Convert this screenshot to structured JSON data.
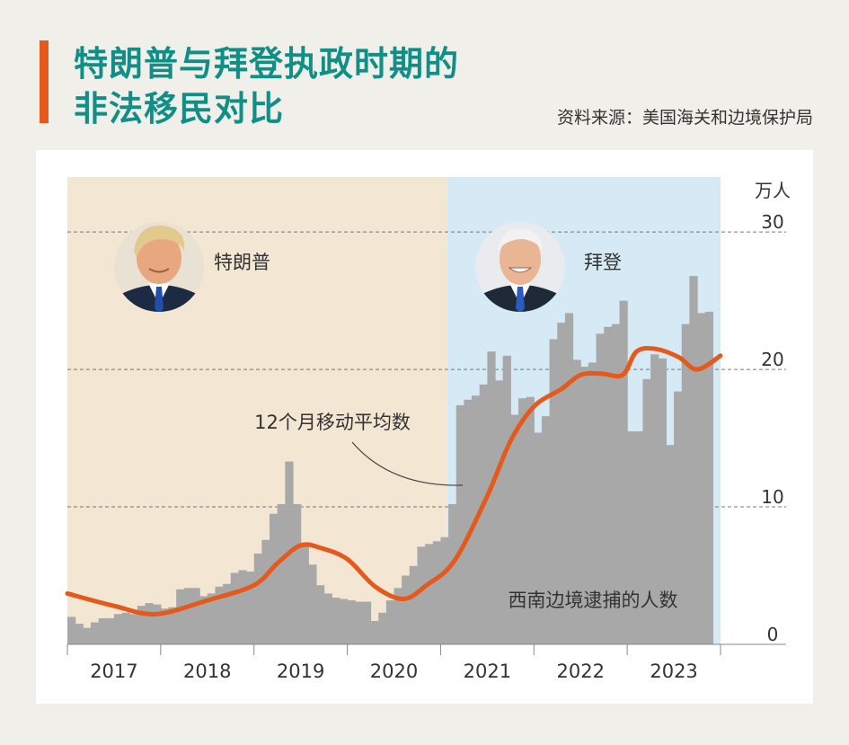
{
  "title_lines": [
    "特朗普与拜登执政时期的",
    "非法移民对比"
  ],
  "source": "资料来源：美国海关和边境保护局",
  "colors": {
    "accent": "#e35a1c",
    "title": "#0f8f86",
    "trump_bg": "#f3e6d3",
    "biden_bg": "#d6eaf5",
    "bars": "#a8a8a8",
    "moving_average": "#e35a1c"
  },
  "chart_data": {
    "type": "bar",
    "unit": "万人",
    "ylim": [
      0,
      34
    ],
    "yticks": [
      0,
      10,
      20,
      30
    ],
    "x_start": 2017,
    "x_end": 2024,
    "year_labels": [
      "2017",
      "2018",
      "2019",
      "2020",
      "2021",
      "2022",
      "2023"
    ],
    "periods": [
      {
        "name": "特朗普",
        "start": 2017.0,
        "end": 2021.07
      },
      {
        "name": "拜登",
        "start": 2021.07,
        "end": 2024.0
      }
    ],
    "series": [
      {
        "name": "西南边境逮捕的人数",
        "type": "bar",
        "start": 2017.0,
        "step_months": 1,
        "values": [
          2.0,
          1.5,
          1.2,
          1.6,
          1.9,
          1.9,
          2.2,
          2.3,
          2.2,
          2.8,
          3.0,
          2.9,
          2.6,
          2.7,
          4.0,
          4.1,
          4.1,
          3.5,
          3.7,
          4.2,
          4.4,
          5.2,
          5.4,
          5.3,
          6.6,
          7.6,
          9.5,
          10.2,
          13.3,
          10.2,
          7.2,
          5.8,
          4.3,
          3.7,
          3.4,
          3.3,
          3.2,
          3.1,
          3.1,
          1.7,
          2.3,
          3.2,
          4.1,
          5.0,
          5.7,
          7.1,
          7.3,
          7.5,
          7.8,
          10.2,
          17.4,
          17.8,
          18.1,
          18.9,
          21.3,
          19.2,
          21.0,
          16.7,
          17.9,
          18.0,
          15.4,
          16.6,
          22.2,
          23.4,
          24.1,
          20.7,
          20.2,
          20.5,
          22.6,
          23.1,
          23.3,
          25.0,
          15.5,
          15.5,
          19.3,
          21.1,
          20.8,
          14.5,
          18.4,
          23.3,
          26.8,
          24.1,
          24.2
        ]
      },
      {
        "name": "12个月移动平均数",
        "type": "line",
        "x": [
          2017.0,
          2017.5,
          2017.95,
          2018.5,
          2019.0,
          2019.25,
          2019.5,
          2019.72,
          2020.0,
          2020.3,
          2020.6,
          2020.85,
          2021.15,
          2021.5,
          2021.75,
          2022.0,
          2022.3,
          2022.5,
          2022.72,
          2022.95,
          2023.1,
          2023.3,
          2023.55,
          2023.75,
          2024.0
        ],
        "y": [
          3.7,
          2.8,
          2.2,
          3.2,
          4.3,
          5.9,
          7.2,
          7.0,
          6.2,
          4.2,
          3.3,
          4.3,
          6.1,
          10.8,
          14.8,
          17.3,
          18.6,
          19.6,
          19.7,
          19.6,
          21.3,
          21.5,
          20.9,
          20.0,
          21.0
        ]
      }
    ],
    "annotations": {
      "bars_label": "西南边境逮捕的人数",
      "line_label": "12个月移动平均数",
      "trump_label": "特朗普",
      "biden_label": "拜登"
    }
  }
}
